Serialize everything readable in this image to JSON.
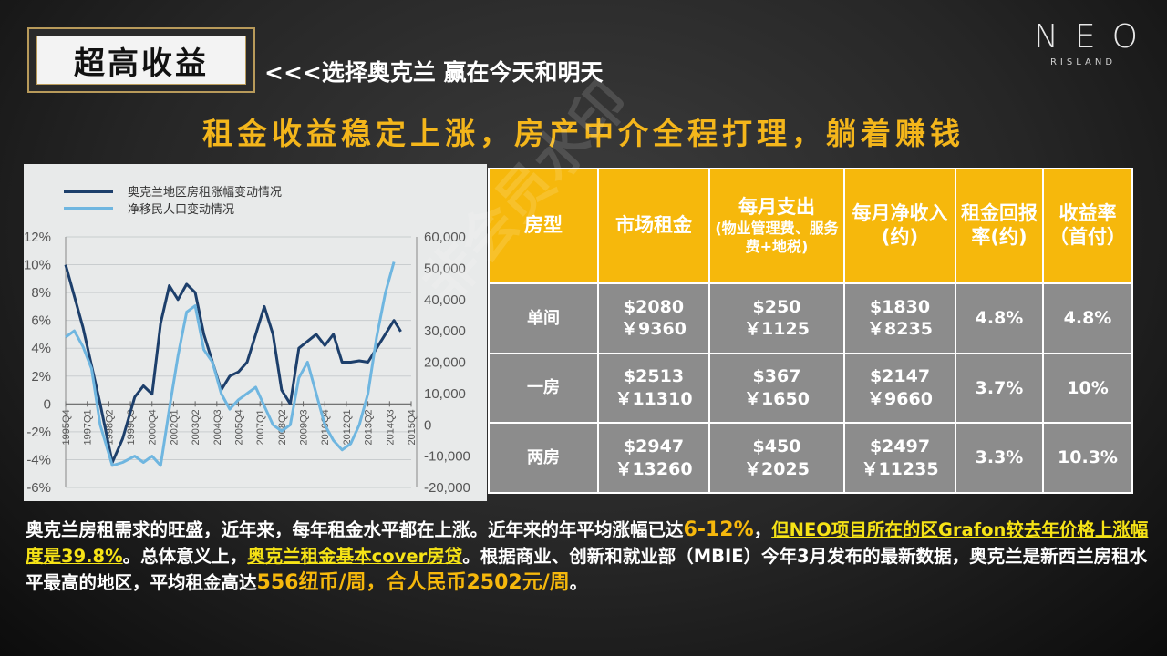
{
  "header": {
    "title": "超高收益",
    "subtitle": "<<<选择奥克兰  赢在今天和明天"
  },
  "logo": {
    "main": "NEO",
    "sub": "RISLAND"
  },
  "headline": "租金收益稳定上涨，房产中介全程打理，躺着赚钱",
  "colors": {
    "accent": "#f6b80c",
    "rent_series": "#1d3f6b",
    "migration_series": "#6fb6e0"
  },
  "chart_data": {
    "type": "line",
    "series": [
      {
        "name": "奥克兰地区房租涨幅变动情况",
        "axis": "left",
        "color": "#1d3f6b",
        "values": [
          [
            0,
            10
          ],
          [
            1,
            5.5
          ],
          [
            2,
            0
          ],
          [
            2.7,
            -4.2
          ],
          [
            3.3,
            -2.5
          ],
          [
            4,
            0.5
          ],
          [
            4.5,
            1.3
          ],
          [
            5,
            0.7
          ],
          [
            5.5,
            5.8
          ],
          [
            6,
            8.5
          ],
          [
            6.5,
            7.5
          ],
          [
            7,
            8.6
          ],
          [
            7.5,
            8
          ],
          [
            8,
            5
          ],
          [
            8.5,
            3
          ],
          [
            9,
            1
          ],
          [
            9.5,
            2
          ],
          [
            10,
            2.3
          ],
          [
            10.5,
            3
          ],
          [
            11,
            5
          ],
          [
            11.5,
            7
          ],
          [
            12,
            5
          ],
          [
            12.5,
            1
          ],
          [
            13,
            0
          ],
          [
            13.5,
            4
          ],
          [
            14,
            4.5
          ],
          [
            14.5,
            5
          ],
          [
            15,
            4.2
          ],
          [
            15.5,
            5
          ],
          [
            16,
            3
          ],
          [
            16.5,
            3
          ],
          [
            17,
            3.1
          ],
          [
            17.5,
            3
          ],
          [
            18,
            4
          ],
          [
            18.5,
            5
          ],
          [
            19,
            6
          ],
          [
            19.4,
            5.2
          ]
        ]
      },
      {
        "name": "净移民人口变动情况",
        "axis": "right",
        "color": "#6fb6e0",
        "values": [
          [
            0,
            28000
          ],
          [
            0.5,
            30000
          ],
          [
            1,
            25000
          ],
          [
            1.5,
            18000
          ],
          [
            2,
            0
          ],
          [
            2.7,
            -13000
          ],
          [
            3.3,
            -12000
          ],
          [
            4,
            -10000
          ],
          [
            4.5,
            -12000
          ],
          [
            5,
            -10000
          ],
          [
            5.5,
            -13000
          ],
          [
            6,
            5000
          ],
          [
            6.5,
            22000
          ],
          [
            7,
            36000
          ],
          [
            7.5,
            38000
          ],
          [
            8,
            24000
          ],
          [
            8.5,
            20000
          ],
          [
            9,
            10000
          ],
          [
            9.5,
            5000
          ],
          [
            10,
            8000
          ],
          [
            10.5,
            10000
          ],
          [
            11,
            12000
          ],
          [
            11.5,
            6000
          ],
          [
            12,
            0
          ],
          [
            12.5,
            -2000
          ],
          [
            13,
            0
          ],
          [
            13.5,
            15000
          ],
          [
            14,
            20000
          ],
          [
            14.5,
            10000
          ],
          [
            15,
            0
          ],
          [
            15.5,
            -5000
          ],
          [
            16,
            -8000
          ],
          [
            16.5,
            -6000
          ],
          [
            17,
            0
          ],
          [
            17.5,
            10000
          ],
          [
            18,
            28000
          ],
          [
            18.5,
            42000
          ],
          [
            19,
            52000
          ]
        ]
      }
    ],
    "x_tick_labels": [
      "1995Q4",
      "1997Q1",
      "1998Q2",
      "1999Q3",
      "2000Q4",
      "2002Q1",
      "2003Q2",
      "2004Q3",
      "2005Q4",
      "2007Q1",
      "2008Q2",
      "2009Q3",
      "2010Q4",
      "2012Q1",
      "2013Q2",
      "2014Q3",
      "2015Q4"
    ],
    "x_tick_positions": [
      0,
      1.25,
      2.5,
      3.75,
      5,
      6.25,
      7.5,
      8.75,
      10,
      11.25,
      12.5,
      13.75,
      15,
      16.25,
      17.5,
      18.75,
      20
    ],
    "xlim": [
      0,
      20
    ],
    "ylim_left": [
      -6,
      12
    ],
    "ylim_right": [
      -20000,
      60000
    ],
    "left_tick_labels": [
      "12%",
      "10%",
      "8%",
      "6%",
      "4%",
      "2%",
      "0",
      "-2%",
      "-4%",
      "-6%"
    ],
    "left_tick_values": [
      12,
      10,
      8,
      6,
      4,
      2,
      0,
      -2,
      -4,
      -6
    ],
    "right_tick_labels": [
      "60,000",
      "50,000",
      "40,000",
      "30,000",
      "20,000",
      "10,000",
      "0",
      "-10,000",
      "-20,000"
    ],
    "right_tick_values": [
      60000,
      50000,
      40000,
      30000,
      20000,
      10000,
      0,
      -10000,
      -20000
    ],
    "legend_position": "top-left",
    "grid": true
  },
  "table": {
    "headers": [
      {
        "main": "房型",
        "sub": ""
      },
      {
        "main": "市场租金",
        "sub": ""
      },
      {
        "main": "每月支出",
        "sub": "(物业管理费、服务费+地税)"
      },
      {
        "main": "每月净收入(约)",
        "sub": ""
      },
      {
        "main": "租金回报率(约)",
        "sub": ""
      },
      {
        "main": "收益率（首付）",
        "sub": ""
      }
    ],
    "rows": [
      {
        "type": "单间",
        "rent_nzd": "$2080",
        "rent_cny": "￥9360",
        "cost_nzd": "$250",
        "cost_cny": "￥1125",
        "net_nzd": "$1830",
        "net_cny": "￥8235",
        "yield": "4.8%",
        "return": "4.8%"
      },
      {
        "type": "一房",
        "rent_nzd": "$2513",
        "rent_cny": "￥11310",
        "cost_nzd": "$367",
        "cost_cny": "￥1650",
        "net_nzd": "$2147",
        "net_cny": "￥9660",
        "yield": "3.7%",
        "return": "10%"
      },
      {
        "type": "两房",
        "rent_nzd": "$2947",
        "rent_cny": "￥13260",
        "cost_nzd": "$450",
        "cost_cny": "￥2025",
        "net_nzd": "$2497",
        "net_cny": "￥11235",
        "yield": "3.3%",
        "return": "10.3%"
      }
    ]
  },
  "watermark": "非会员水印",
  "paragraph": {
    "p1": "奥克兰房租需求的旺盛，近年来，每年租金水平都在上涨。近年来的年平均涨幅已达",
    "p2": "6-12%",
    "p3": "，",
    "p4": "但NEO项目所在的区Grafon较去年价格上涨幅度是39.8%",
    "p5": "。总体意义上，",
    "p6": "奥克兰租金基本cover房贷",
    "p7": "。根据商业、创新和就业部（MBIE）今年3月发布的最新数据，奥克兰是新西兰房租水平最高的地区，平均租金高达",
    "p8": "556纽币/周，合人民币2502元/周",
    "p9": "。"
  }
}
